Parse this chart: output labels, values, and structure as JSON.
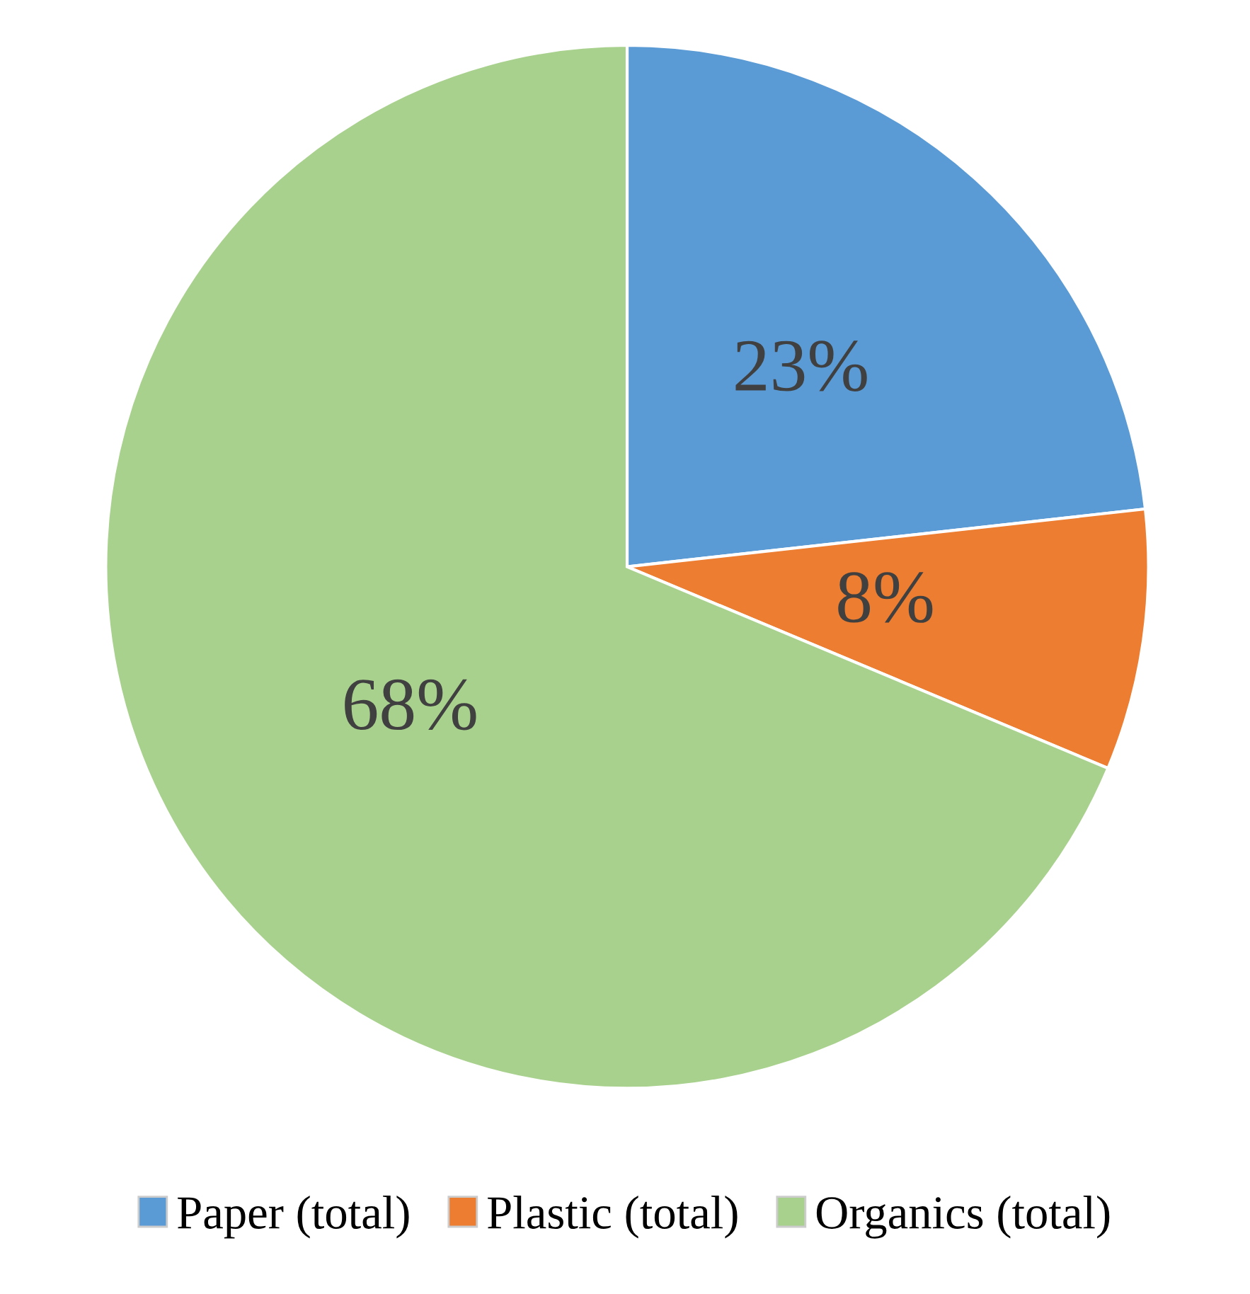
{
  "chart_data": {
    "type": "pie",
    "categories": [
      "Paper (total)",
      "Plastic (total)",
      "Organics (total)"
    ],
    "values": [
      23,
      8,
      68
    ],
    "colors": [
      "#5b9bd5",
      "#ed7d31",
      "#a9d18e"
    ],
    "value_labels": [
      "23%",
      "8%",
      "68%"
    ],
    "legend": "bottom"
  }
}
